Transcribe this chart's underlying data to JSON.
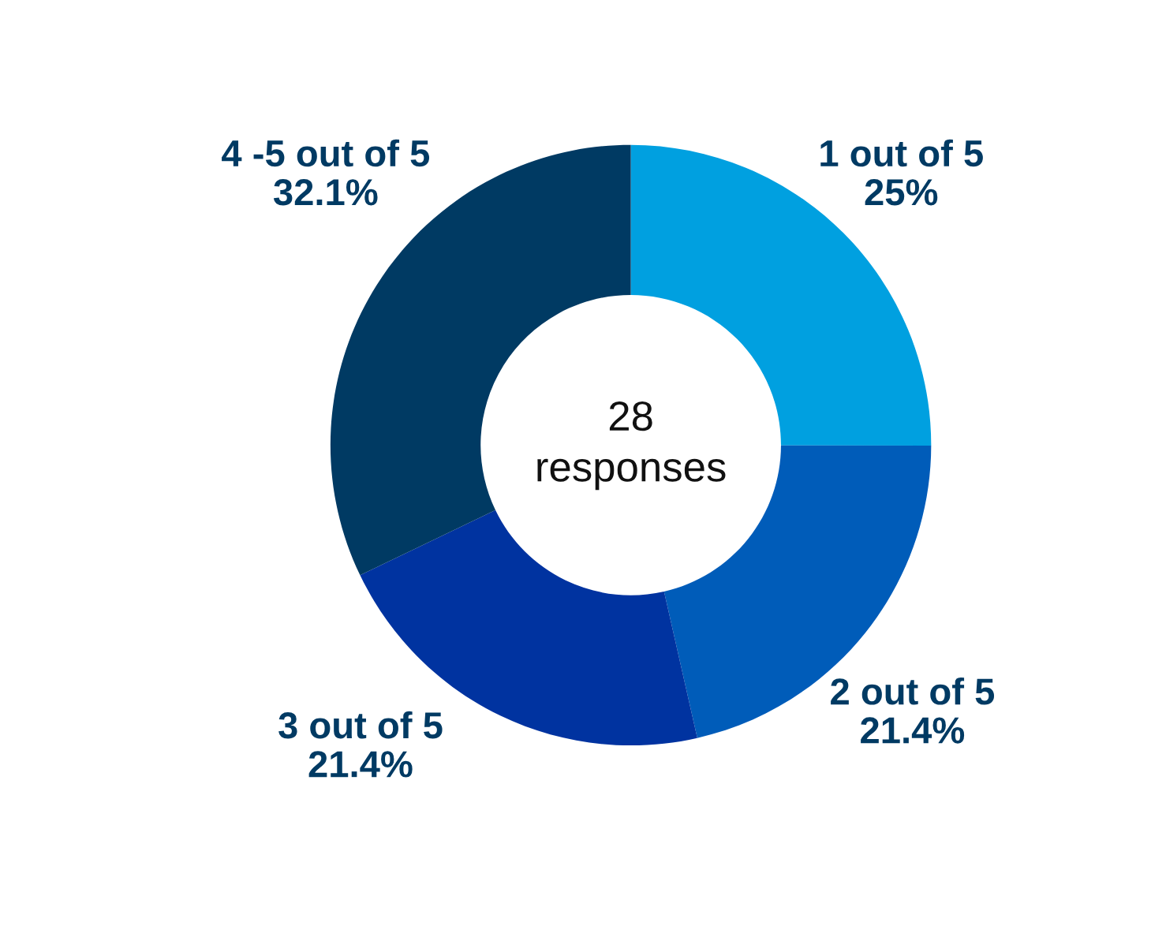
{
  "chart_data": {
    "type": "donut",
    "categories": [
      "1 out of 5",
      "2 out of 5",
      "3 out of 5",
      "4 -5 out of 5"
    ],
    "values": [
      25,
      21.4,
      21.4,
      32.1
    ],
    "value_labels": [
      "25%",
      "21.4%",
      "21.4%",
      "32.1%"
    ],
    "colors": [
      "#00a0e0",
      "#005cb9",
      "#0033a0",
      "#003a63"
    ],
    "annotations": [
      "28\nresponses"
    ],
    "legend": false
  }
}
